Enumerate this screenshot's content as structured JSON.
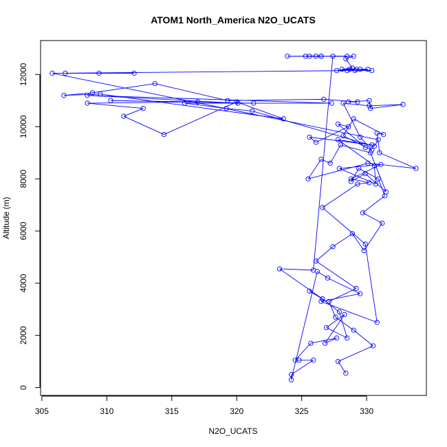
{
  "chart_data": {
    "type": "line",
    "title": "ATOM1 North_America N2O_UCATS",
    "xlabel": "N2O_UCATS",
    "ylabel": "Altitude (m)",
    "xlim": [
      304.9,
      334.6
    ],
    "ylim": [
      -300,
      13300
    ],
    "xticks": [
      305,
      310,
      315,
      320,
      325,
      330
    ],
    "yticks": [
      0,
      2000,
      4000,
      6000,
      8000,
      10000,
      12000
    ],
    "grid": false,
    "legend": "none",
    "series": [
      {
        "color": "#0000ff",
        "marker": "open-circle",
        "points": [
          [
            328.4,
            550
          ],
          [
            327.8,
            1000
          ],
          [
            330.5,
            1600
          ],
          [
            329.0,
            2200
          ],
          [
            327.6,
            2700
          ],
          [
            327.1,
            3300
          ],
          [
            329.2,
            3800
          ],
          [
            326.1,
            4850
          ],
          [
            327.4,
            5400
          ],
          [
            328.9,
            5900
          ],
          [
            329.8,
            5250
          ],
          [
            331.2,
            6300
          ],
          [
            329.7,
            6700
          ],
          [
            331.4,
            7350
          ],
          [
            330.9,
            8000
          ],
          [
            329.4,
            8400
          ],
          [
            328.8,
            7900
          ],
          [
            329.9,
            8200
          ],
          [
            331.5,
            7500
          ],
          [
            330.3,
            9000
          ],
          [
            328.0,
            9300
          ],
          [
            327.2,
            8600
          ],
          [
            326.5,
            8750
          ],
          [
            325.5,
            8000
          ],
          [
            330.1,
            8600
          ],
          [
            333.8,
            8400
          ],
          [
            331.0,
            9000
          ],
          [
            330.8,
            9750
          ],
          [
            331.3,
            9700
          ],
          [
            329.0,
            10300
          ],
          [
            328.2,
            9650
          ],
          [
            330.4,
            9100
          ],
          [
            329.5,
            9600
          ],
          [
            328.2,
            10900
          ],
          [
            330.2,
            10800
          ],
          [
            332.8,
            10850
          ],
          [
            330.3,
            10700
          ],
          [
            330.2,
            11000
          ],
          [
            328.6,
            10950
          ],
          [
            329.3,
            10950
          ],
          [
            326.7,
            11050
          ],
          [
            319.3,
            11000
          ],
          [
            313.7,
            11650
          ],
          [
            308.9,
            11300
          ],
          [
            306.7,
            11200
          ],
          [
            309.5,
            11250
          ],
          [
            323.6,
            10300
          ],
          [
            320.0,
            10950
          ],
          [
            314.4,
            9700
          ],
          [
            311.3,
            10400
          ],
          [
            312.8,
            10700
          ],
          [
            308.5,
            10900
          ],
          [
            317.0,
            10950
          ],
          [
            310.3,
            11000
          ],
          [
            321.3,
            10900
          ],
          [
            320.1,
            10900
          ],
          [
            308.5,
            11200
          ],
          [
            327.3,
            10900
          ],
          [
            316.0,
            10900
          ],
          [
            319.2,
            10700
          ],
          [
            321.2,
            10600
          ],
          [
            330.6,
            9250
          ],
          [
            330.9,
            9500
          ],
          [
            305.8,
            12050
          ],
          [
            309.4,
            12050
          ],
          [
            312.1,
            12050
          ],
          [
            306.8,
            12050
          ],
          [
            328.5,
            12150
          ],
          [
            329.1,
            12150
          ],
          [
            330.4,
            12150
          ],
          [
            329.2,
            12200
          ],
          [
            330.1,
            12200
          ],
          [
            328.7,
            12200
          ],
          [
            328.1,
            12200
          ],
          [
            329.5,
            12200
          ],
          [
            327.7,
            12150
          ],
          [
            328.9,
            12250
          ],
          [
            328.4,
            12600
          ],
          [
            329.0,
            12700
          ],
          [
            325.6,
            12700
          ],
          [
            326.1,
            12700
          ],
          [
            326.5,
            12700
          ],
          [
            325.3,
            12700
          ],
          [
            326.5,
            12700
          ],
          [
            323.9,
            12700
          ],
          [
            328.5,
            12700
          ],
          [
            327.4,
            12700
          ],
          [
            325.9,
            4500
          ],
          [
            323.3,
            4550
          ],
          [
            326.6,
            3400
          ],
          [
            325.6,
            3700
          ],
          [
            326.6,
            3400
          ],
          [
            327.9,
            2900
          ],
          [
            328.5,
            1900
          ],
          [
            326.9,
            2300
          ],
          [
            328.3,
            2800
          ],
          [
            326.8,
            1700
          ],
          [
            327.7,
            1900
          ],
          [
            325.7,
            1700
          ],
          [
            324.5,
            1050
          ],
          [
            324.8,
            1050
          ],
          [
            325.9,
            1050
          ],
          [
            324.2,
            500
          ],
          [
            324.2,
            300
          ],
          [
            326.2,
            4450
          ],
          [
            327.0,
            4200
          ],
          [
            329.5,
            3600
          ],
          [
            326.5,
            3300
          ],
          [
            330.8,
            2500
          ],
          [
            329.9,
            5500
          ],
          [
            326.6,
            6900
          ],
          [
            329.3,
            7800
          ],
          [
            330.2,
            7850
          ],
          [
            328.8,
            8000
          ],
          [
            331.1,
            8550
          ],
          [
            327.9,
            8400
          ],
          [
            330.7,
            7800
          ],
          [
            330.6,
            8500
          ],
          [
            327.8,
            9500
          ],
          [
            330.4,
            9300
          ],
          [
            325.6,
            9600
          ],
          [
            326.1,
            9400
          ],
          [
            328.6,
            10000
          ],
          [
            327.8,
            10100
          ],
          [
            329.9,
            9200
          ]
        ]
      }
    ]
  }
}
